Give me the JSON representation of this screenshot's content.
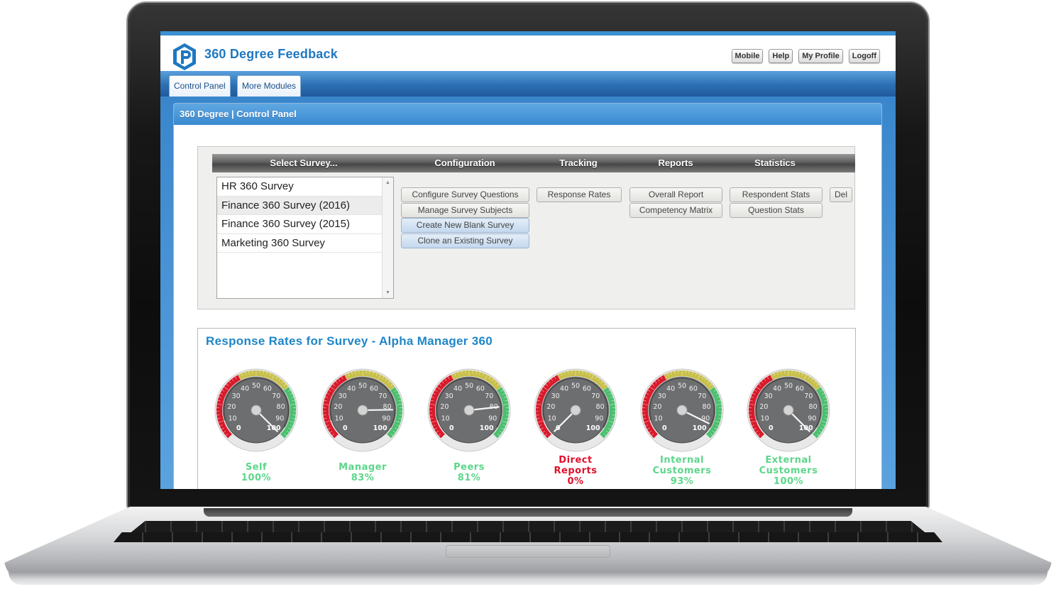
{
  "app": {
    "title": "360 Degree Feedback",
    "top_buttons": [
      "Mobile",
      "Help",
      "My Profile",
      "Logoff"
    ],
    "tabs": [
      "Control Panel",
      "More Modules"
    ],
    "panel_title": "360 Degree | Control Panel"
  },
  "control_panel": {
    "columns": [
      "Select Survey...",
      "Configuration",
      "Tracking",
      "Reports",
      "Statistics"
    ],
    "surveys": [
      {
        "name": "HR 360 Survey",
        "selected": false
      },
      {
        "name": "Finance 360 Survey (2016)",
        "selected": true
      },
      {
        "name": "Finance 360 Survey (2015)",
        "selected": false
      },
      {
        "name": "Marketing 360 Survey",
        "selected": false
      }
    ],
    "configuration_buttons": [
      "Configure Survey Questions",
      "Manage Survey Subjects",
      "Create New Blank Survey",
      "Clone an Existing Survey"
    ],
    "tracking_buttons": [
      "Response Rates"
    ],
    "reports_buttons": [
      "Overall Report",
      "Competency Matrix"
    ],
    "statistics_buttons": [
      "Respondent Stats",
      "Question Stats"
    ],
    "extra_button": "Del"
  },
  "response_rates": {
    "title": "Response Rates for Survey - Alpha Manager 360",
    "gauges": [
      {
        "label_lines": [
          "Self"
        ],
        "value_text": "100%",
        "value": 100,
        "status": "green"
      },
      {
        "label_lines": [
          "Manager"
        ],
        "value_text": "83%",
        "value": 83,
        "status": "green"
      },
      {
        "label_lines": [
          "Peers"
        ],
        "value_text": "81%",
        "value": 81,
        "status": "green"
      },
      {
        "label_lines": [
          "Direct",
          "Reports"
        ],
        "value_text": "0%",
        "value": 0,
        "status": "red"
      },
      {
        "label_lines": [
          "Internal",
          "Customers"
        ],
        "value_text": "93%",
        "value": 93,
        "status": "green"
      },
      {
        "label_lines": [
          "External",
          "Customers"
        ],
        "value_text": "100%",
        "value": 100,
        "status": "green"
      }
    ],
    "scale_labels": [
      "0",
      "10",
      "20",
      "30",
      "40",
      "50",
      "60",
      "70",
      "80",
      "90",
      "100"
    ]
  },
  "colors": {
    "brand_blue": "#1f78c1",
    "header_blue": "#3a8ad0",
    "gauge_green": "#5cd68a",
    "gauge_red": "#e0102c"
  }
}
